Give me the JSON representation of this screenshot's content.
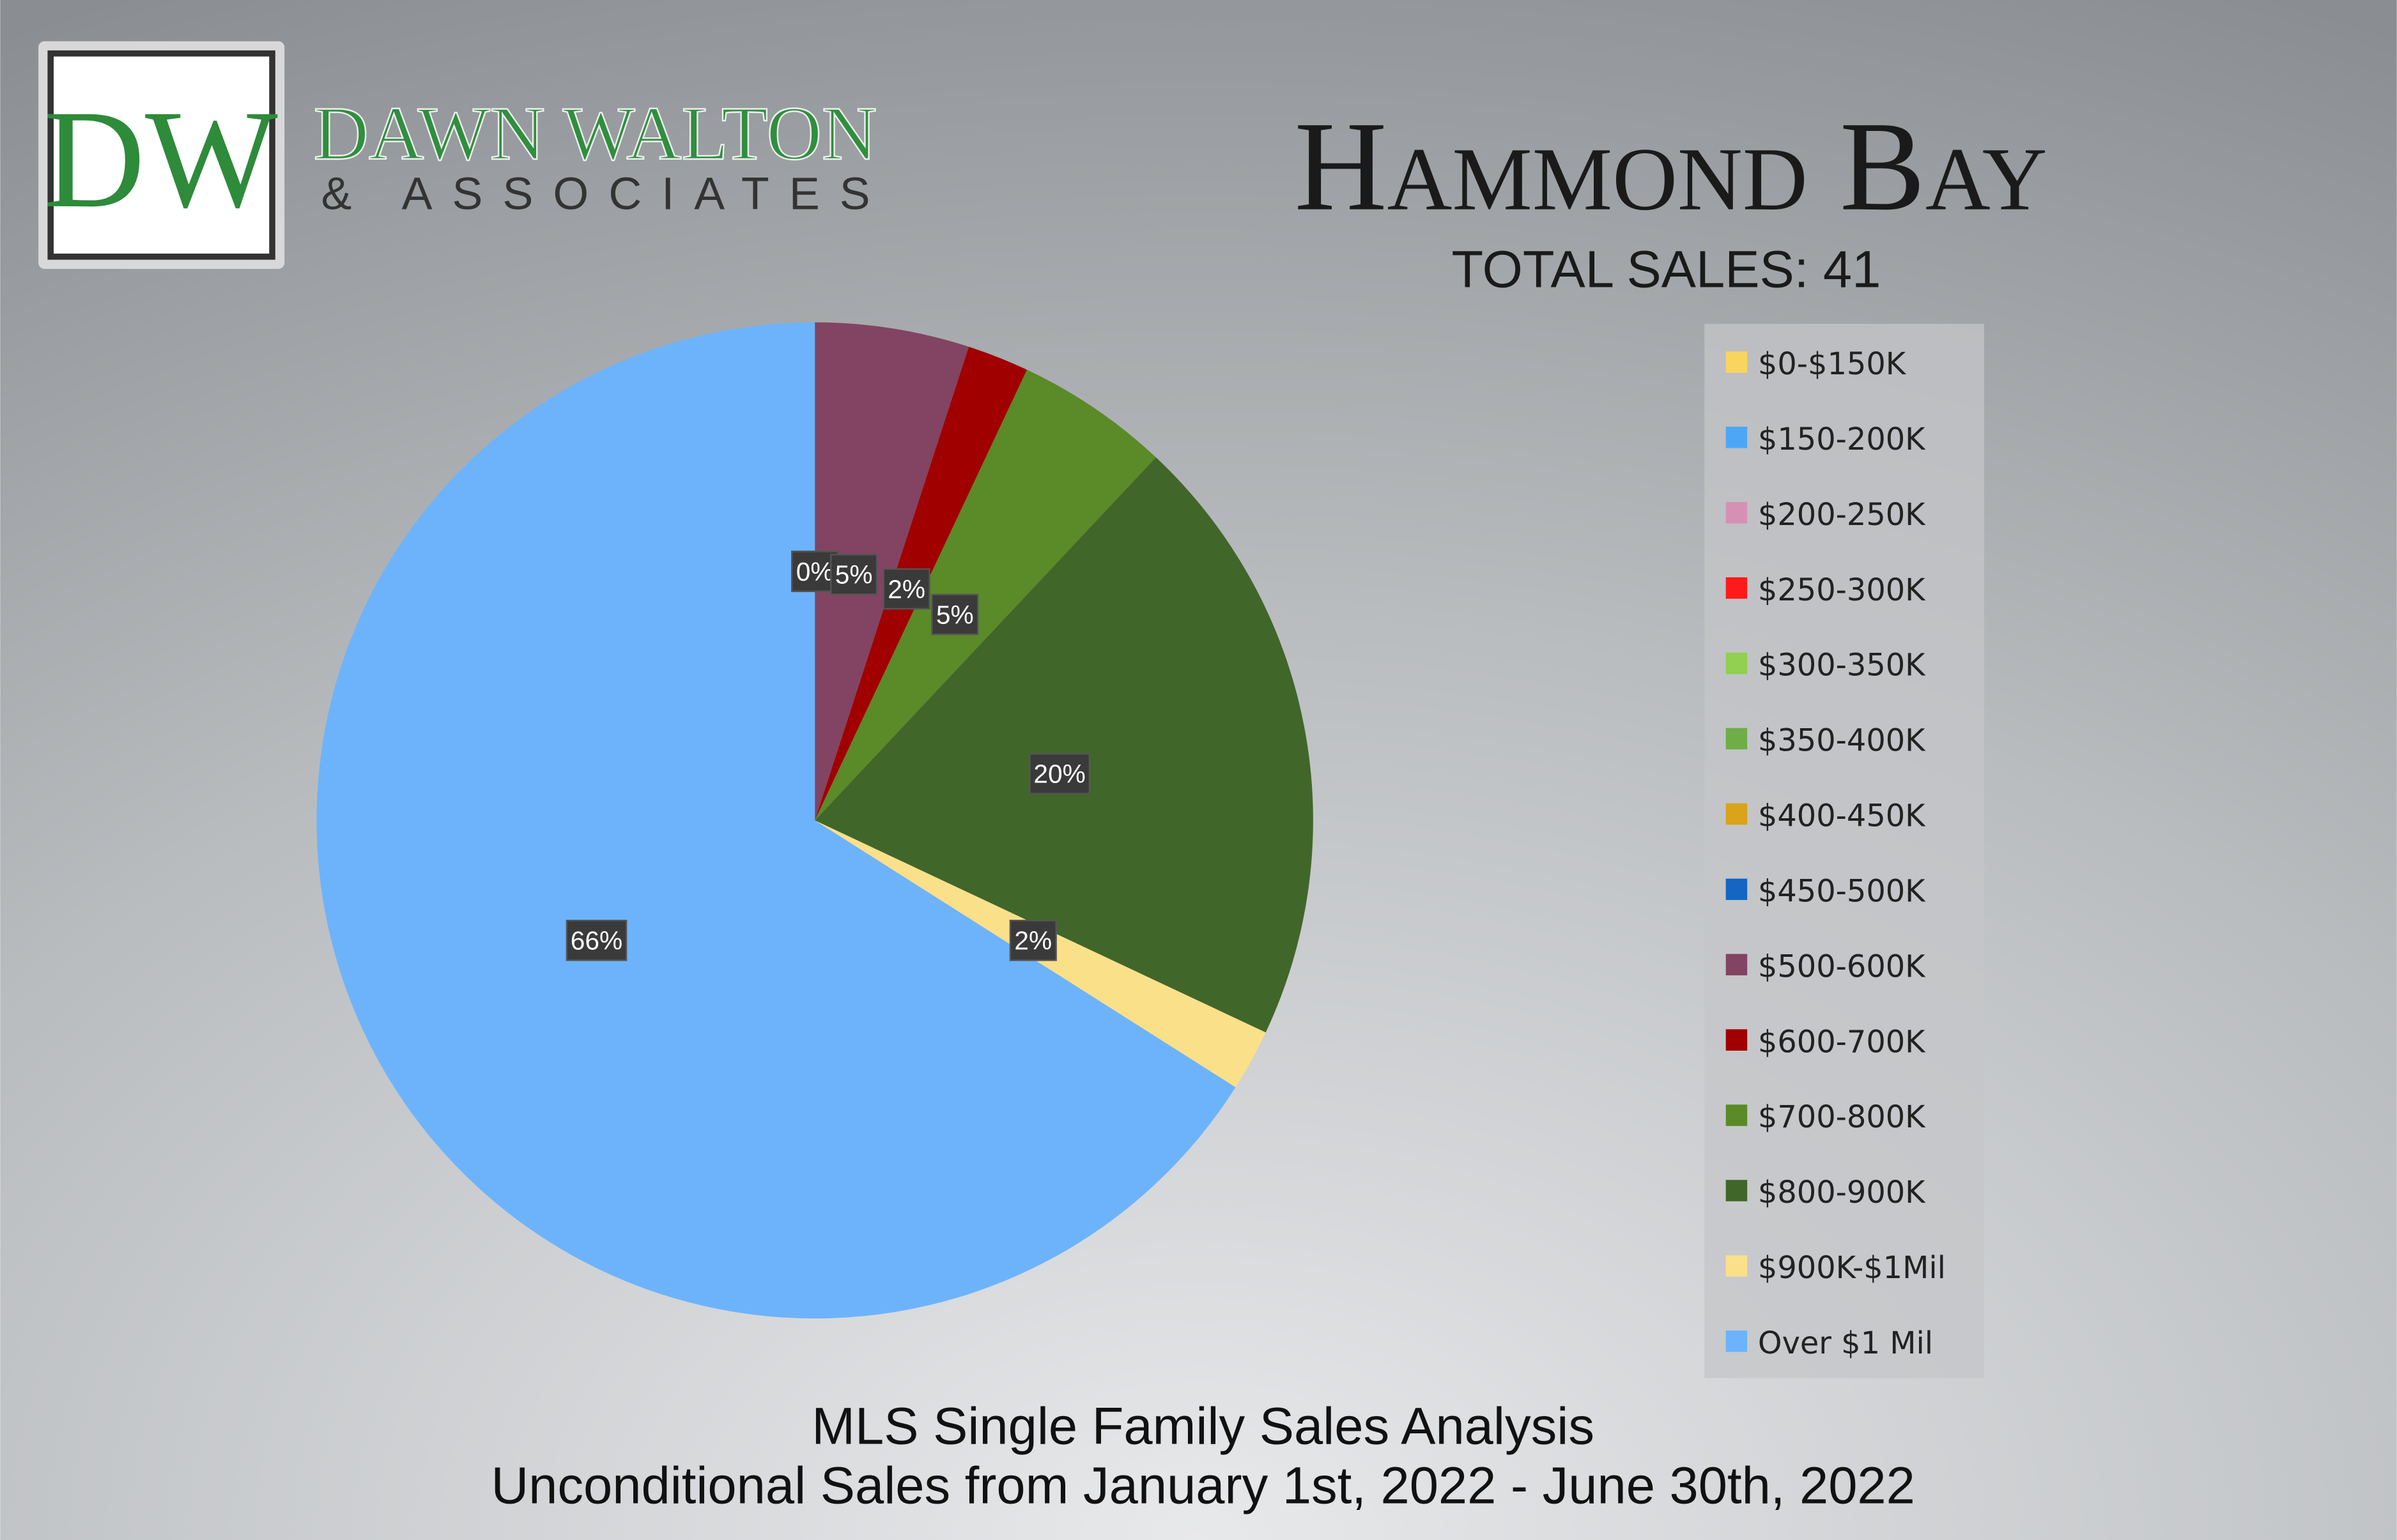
{
  "logo": {
    "initials": "DW",
    "name": "DAWN WALTON",
    "tagline": "& ASSOCIATES"
  },
  "chart_data": {
    "type": "pie",
    "title": "Hammond Bay",
    "subtitle": "TOTAL SALES: 41",
    "caption": [
      "MLS Single Family Sales Analysis",
      "Unconditional Sales from January 1st, 2022 - June 30th, 2022"
    ],
    "categories": [
      "$0-$150K",
      "$150-200K",
      "$200-250K",
      "$250-300K",
      "$300-350K",
      "$350-400K",
      "$400-450K",
      "$450-500K",
      "$500-600K",
      "$600-700K",
      "$700-800K",
      "$800-900K",
      "$900K-$1Mil",
      "Over $1 Mil"
    ],
    "values": [
      0,
      0,
      0,
      0,
      0,
      0,
      0,
      0,
      5,
      2,
      5,
      20,
      2,
      66
    ],
    "value_labels": [
      "0%",
      "0%",
      "0%",
      "0%",
      "0%",
      "0%",
      "0%",
      "0%",
      "5%",
      "2%",
      "5%",
      "20%",
      "2%",
      "66%"
    ],
    "colors": [
      "#f9d55e",
      "#4ea6f7",
      "#d690b3",
      "#ff1a1a",
      "#92d050",
      "#6fae46",
      "#d9a31a",
      "#1466c2",
      "#824462",
      "#a00000",
      "#5b8a28",
      "#416629",
      "#fbe08a",
      "#6db3fb"
    ],
    "legend": "right"
  }
}
